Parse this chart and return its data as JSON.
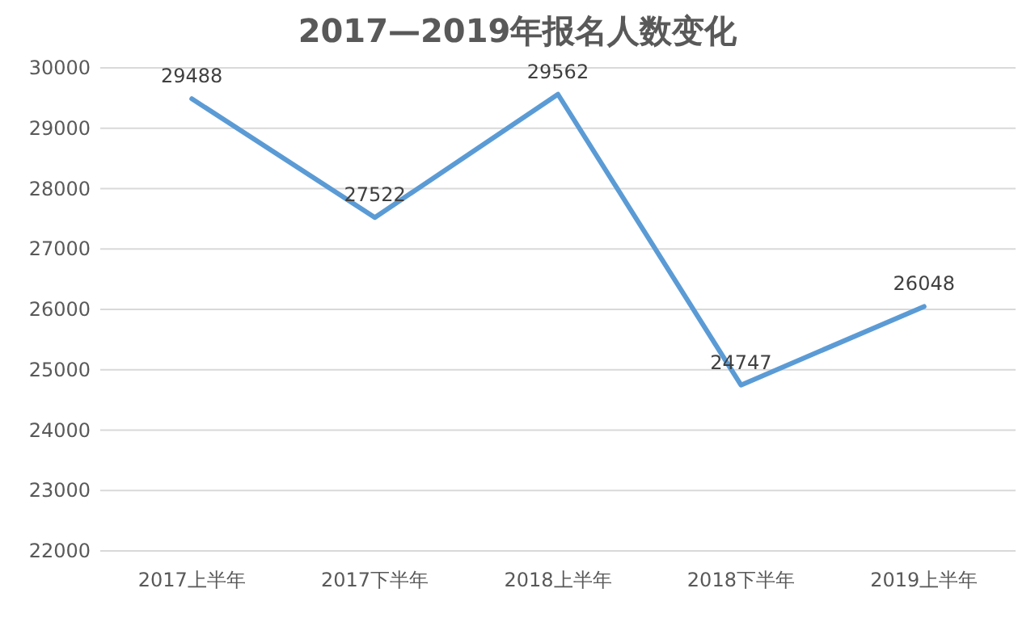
{
  "chart_data": {
    "type": "line",
    "title": "2017—2019年报名人数变化",
    "categories": [
      "2017上半年",
      "2017下半年",
      "2018上半年",
      "2018下半年",
      "2019上半年"
    ],
    "series": [
      {
        "color": "#5b9bd5",
        "values": [
          29488,
          27522,
          29562,
          24747,
          26048
        ]
      }
    ],
    "ylim": [
      22000,
      30000
    ],
    "yticks": [
      22000,
      23000,
      24000,
      25000,
      26000,
      27000,
      28000,
      29000,
      30000
    ],
    "grid": "y",
    "data_labels": true,
    "marker": "none",
    "line_style": "solid"
  }
}
